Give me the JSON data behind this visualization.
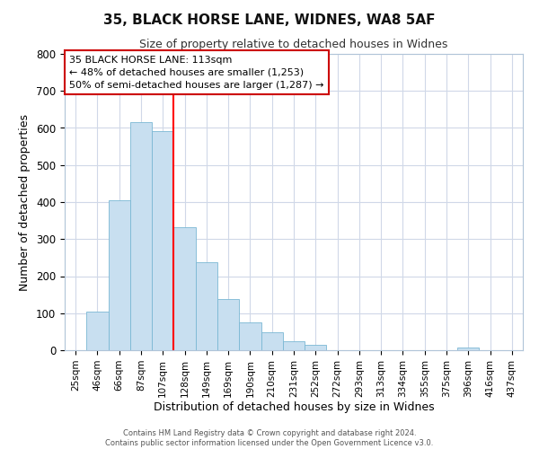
{
  "title_line1": "35, BLACK HORSE LANE, WIDNES, WA8 5AF",
  "title_line2": "Size of property relative to detached houses in Widnes",
  "xlabel": "Distribution of detached houses by size in Widnes",
  "ylabel": "Number of detached properties",
  "bar_labels": [
    "25sqm",
    "46sqm",
    "66sqm",
    "87sqm",
    "107sqm",
    "128sqm",
    "149sqm",
    "169sqm",
    "190sqm",
    "210sqm",
    "231sqm",
    "252sqm",
    "272sqm",
    "293sqm",
    "313sqm",
    "334sqm",
    "355sqm",
    "375sqm",
    "396sqm",
    "416sqm",
    "437sqm"
  ],
  "bar_heights": [
    0,
    105,
    405,
    615,
    592,
    333,
    237,
    137,
    76,
    49,
    25,
    15,
    0,
    0,
    0,
    0,
    0,
    0,
    8,
    0,
    0
  ],
  "bar_color": "#c8dff0",
  "bar_edge_color": "#7ab8d4",
  "grid_color": "#d0d8e8",
  "annotation_box_edge": "#cc0000",
  "annotation_line1": "35 BLACK HORSE LANE: 113sqm",
  "annotation_line2": "← 48% of detached houses are smaller (1,253)",
  "annotation_line3": "50% of semi-detached houses are larger (1,287) →",
  "property_line_x": 4.5,
  "ylim": [
    0,
    800
  ],
  "yticks": [
    0,
    100,
    200,
    300,
    400,
    500,
    600,
    700,
    800
  ],
  "footer_line1": "Contains HM Land Registry data © Crown copyright and database right 2024.",
  "footer_line2": "Contains public sector information licensed under the Open Government Licence v3.0."
}
